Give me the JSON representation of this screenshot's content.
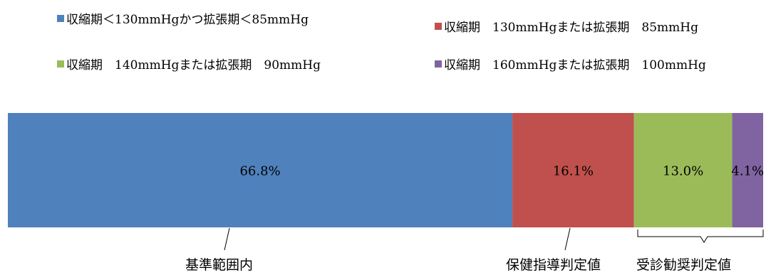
{
  "chart_data": {
    "type": "bar",
    "orientation": "horizontal-stacked-100",
    "categories": [
      ""
    ],
    "series": [
      {
        "name": "収縮期＜130mmHgかつ拡張期＜85mmHg",
        "values": [
          66.8
        ],
        "label": "66.8%",
        "color": "#4F81BD"
      },
      {
        "name": "収縮期　130mmHgまたは拡張期　85mmHg",
        "values": [
          16.1
        ],
        "label": "16.1%",
        "color": "#C0504D"
      },
      {
        "name": "収縮期　140mmHgまたは拡張期　90mmHg",
        "values": [
          13.0
        ],
        "label": "13.0%",
        "color": "#9BBB59"
      },
      {
        "name": "収縮期　160mmHgまたは拡張期　100mmHg",
        "values": [
          4.1
        ],
        "label": "4.1%",
        "color": "#8064A2"
      }
    ],
    "annotations": {
      "standard": "基準範囲内",
      "guidance": "保健指導判定値",
      "recommend": "受診勧奨判定値"
    },
    "legend_position": "top",
    "grid": false
  }
}
